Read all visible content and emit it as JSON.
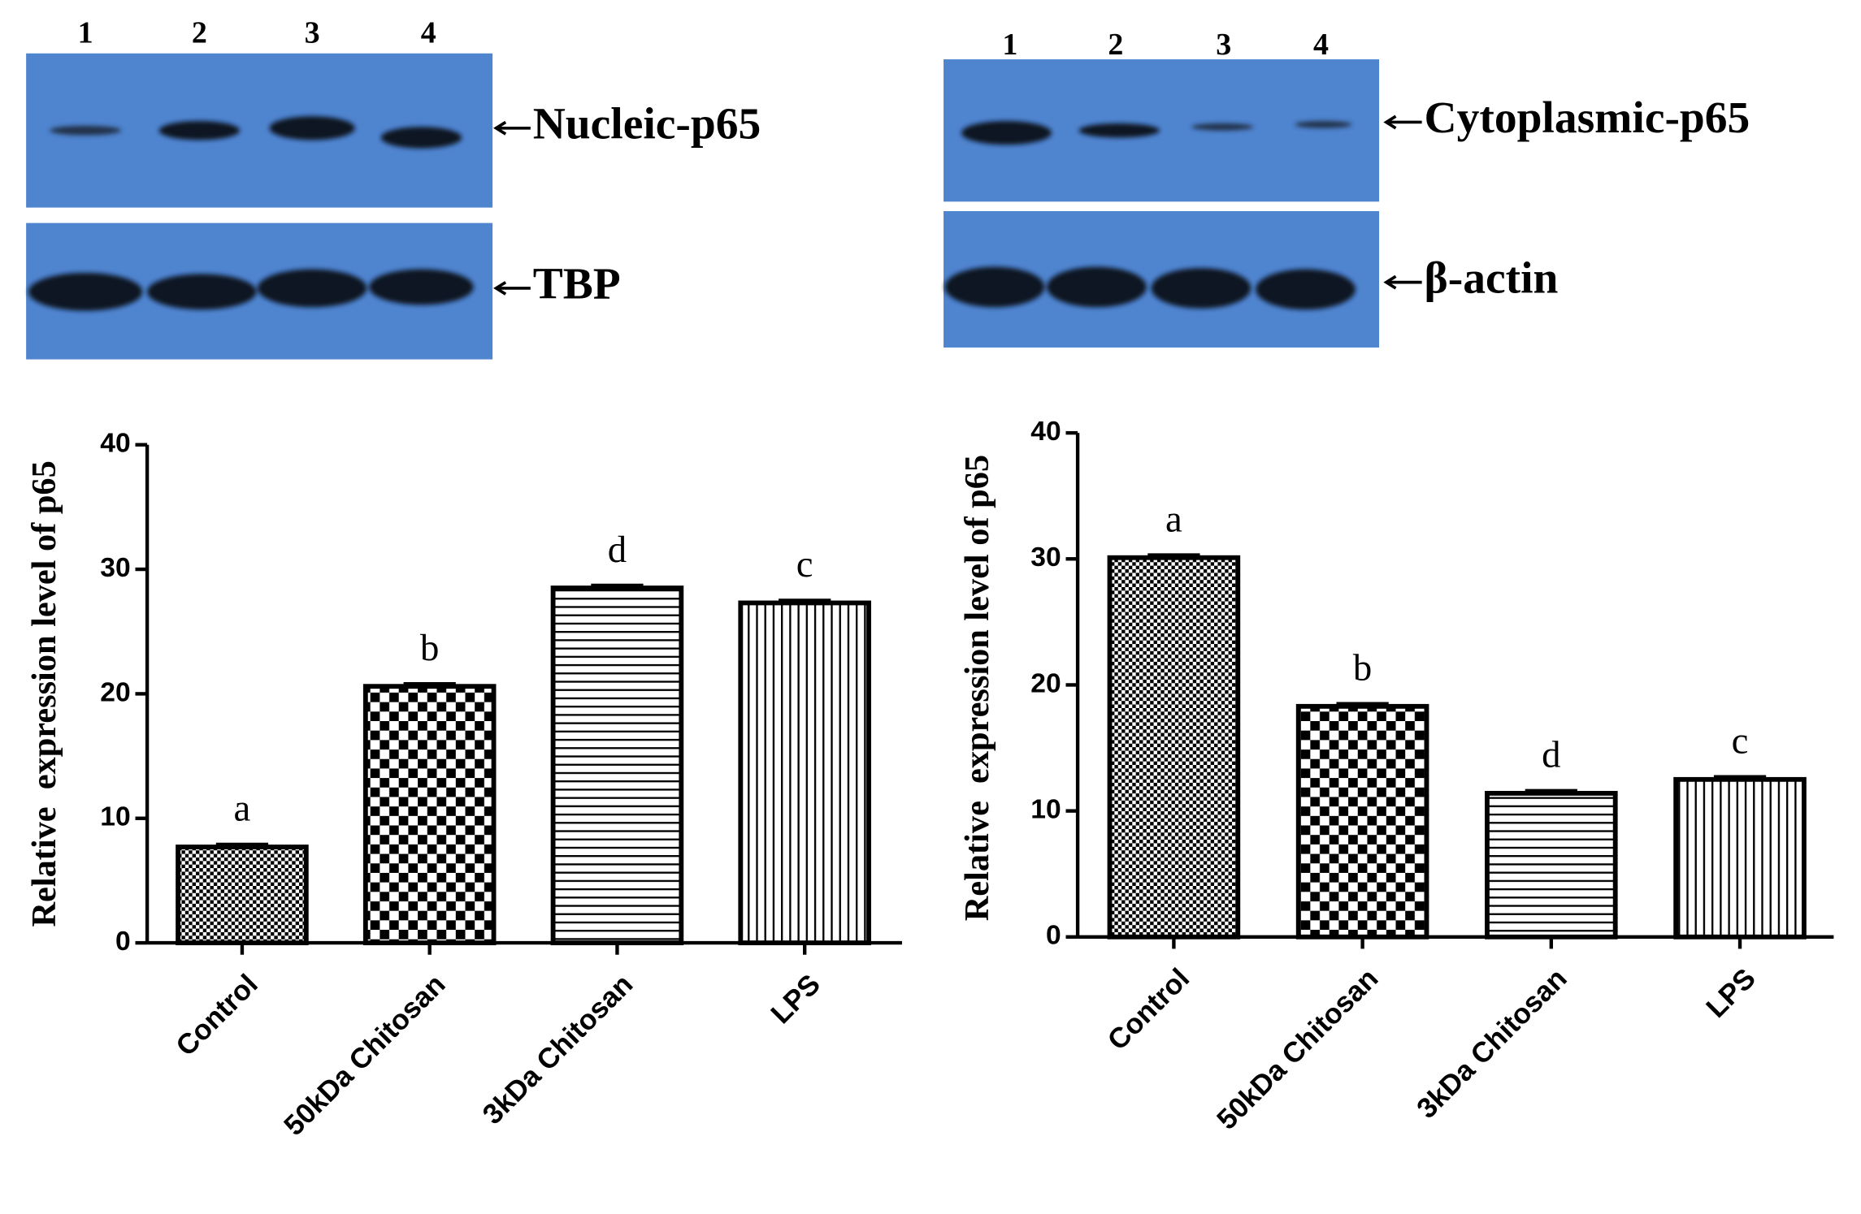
{
  "blots": [
    {
      "lanes": [
        "1",
        "2",
        "3",
        "4"
      ],
      "labels": [
        "Nucleic-p65",
        "TBP"
      ]
    },
    {
      "lanes": [
        "1",
        "2",
        "3",
        "4"
      ],
      "labels": [
        "Cytoplasmic-p65",
        "β-actin"
      ]
    }
  ],
  "chart_data": [
    {
      "type": "bar",
      "ylabel": "Relative  expression level of p65",
      "categories": [
        "Control",
        "50kDa Chitosan",
        "3kDa Chitosan",
        "LPS"
      ],
      "values": [
        7.7,
        20.6,
        28.5,
        27.3
      ],
      "errors": [
        0.2,
        0.2,
        0.2,
        0.2
      ],
      "annotations": [
        "a",
        "b",
        "d",
        "c"
      ],
      "ylim": [
        0,
        40
      ],
      "yticks": [
        0,
        10,
        20,
        30,
        40
      ],
      "color": "#000000"
    },
    {
      "type": "bar",
      "ylabel": "Relative  expression level of p65",
      "categories": [
        "Control",
        "50kDa Chitosan",
        "3kDa Chitosan",
        "LPS"
      ],
      "values": [
        30.1,
        18.3,
        11.4,
        12.5
      ],
      "errors": [
        0.2,
        0.2,
        0.2,
        0.2
      ],
      "annotations": [
        "a",
        "b",
        "d",
        "c"
      ],
      "ylim": [
        0,
        40
      ],
      "yticks": [
        0,
        10,
        20,
        30,
        40
      ],
      "color": "#000000"
    }
  ]
}
